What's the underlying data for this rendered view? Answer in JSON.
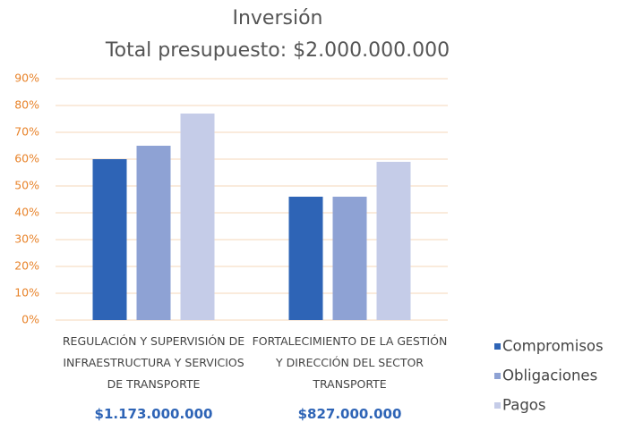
{
  "chart_data": {
    "type": "bar",
    "title": [
      "Inversión",
      "Total presupuesto: $2.000.000.000"
    ],
    "categories": [
      "REGULACIÓN Y SUPERVISIÓN DE INFRAESTRUCTURA Y SERVICIOS DE TRANSPORTE",
      "FORTALECIMIENTO DE LA GESTIÓN Y DIRECCIÓN DEL SECTOR TRANSPORTE"
    ],
    "annotations": [
      "$1.173.000.000",
      "$827.000.000"
    ],
    "series": [
      {
        "name": "Compromisos",
        "color": "#2e64b6",
        "values": [
          60,
          46
        ]
      },
      {
        "name": "Obligaciones",
        "color": "#8ea2d4",
        "values": [
          65,
          46
        ]
      },
      {
        "name": "Pagos",
        "color": "#c5cce8",
        "values": [
          77,
          59
        ]
      }
    ],
    "ylim": [
      0,
      90
    ],
    "yticks": [
      {
        "value": 0,
        "label": "0%"
      },
      {
        "value": 10,
        "label": "10%"
      },
      {
        "value": 20,
        "label": "20%"
      },
      {
        "value": 30,
        "label": "30%"
      },
      {
        "value": 40,
        "label": "40%"
      },
      {
        "value": 50,
        "label": "50%"
      },
      {
        "value": 60,
        "label": "60%"
      },
      {
        "value": 70,
        "label": "70%"
      },
      {
        "value": 80,
        "label": "80%"
      },
      {
        "value": 90,
        "label": "90%"
      }
    ],
    "grid": true,
    "legend": "right"
  }
}
